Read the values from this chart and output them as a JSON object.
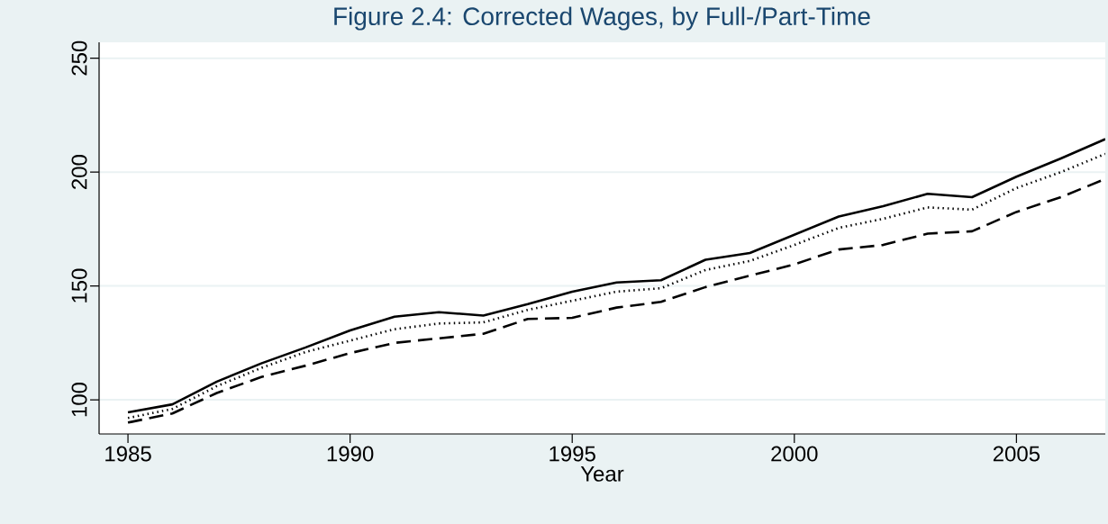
{
  "chart_data": {
    "type": "line",
    "title": "Figure 2.4: Corrected Wages, by Full-/Part-Time",
    "xlabel": "Year",
    "x": [
      1985,
      1986,
      1987,
      1988,
      1989,
      1990,
      1991,
      1992,
      1993,
      1994,
      1995,
      1996,
      1997,
      1998,
      1999,
      2000,
      2001,
      2002,
      2003,
      2004,
      2005,
      2006,
      2007
    ],
    "series": [
      {
        "color": "#000000",
        "line_style": "solid",
        "values": [
          94.5,
          98,
          108,
          116,
          123,
          130.5,
          136.5,
          138.5,
          137,
          142,
          147.5,
          151.5,
          152.5,
          161.5,
          164.5,
          172.5,
          180.5,
          185,
          190.5,
          189,
          198,
          206,
          214.5
        ]
      },
      {
        "color": "#000000",
        "line_style": "dotted",
        "values": [
          92,
          96,
          106,
          114,
          121,
          126,
          131,
          133.5,
          134,
          139.5,
          143.5,
          147.5,
          149,
          157,
          161,
          168,
          175.5,
          179.5,
          184.5,
          183.5,
          193,
          200,
          208
        ]
      },
      {
        "color": "#000000",
        "line_style": "dashed",
        "values": [
          90,
          94,
          103,
          110,
          115,
          120.5,
          125,
          127,
          129,
          135.5,
          136,
          140.5,
          143,
          149.5,
          154.5,
          159.5,
          166,
          168,
          173,
          174,
          182.5,
          189,
          197
        ]
      }
    ],
    "xlim": [
      1984.35,
      2007
    ],
    "ylim": [
      85,
      257
    ],
    "xticks": [
      1985,
      1990,
      1995,
      2000,
      2005
    ],
    "yticks": [
      100,
      150,
      200,
      250
    ],
    "grid": "y",
    "marker": "none"
  }
}
